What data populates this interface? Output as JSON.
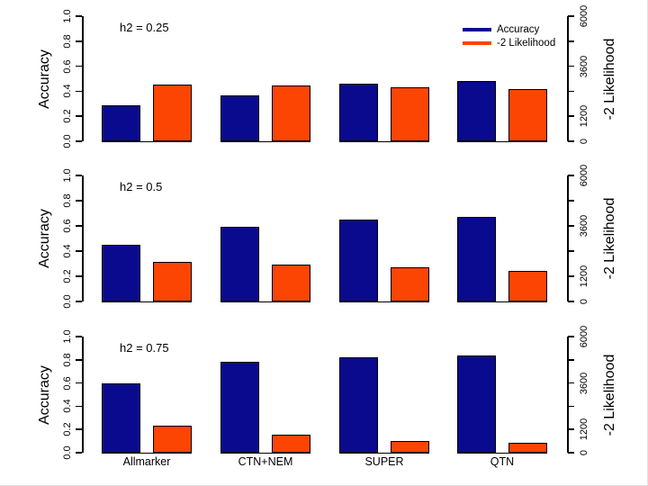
{
  "figure": {
    "background": "#ffffff"
  },
  "chart_data": {
    "type": "bar",
    "categories": [
      "Allmarker",
      "CTN+NEM",
      "SUPER",
      "QTN"
    ],
    "panels": [
      {
        "label": "h2 = 0.25",
        "series": [
          {
            "name": "Accuracy",
            "axis": "left",
            "values": [
              0.29,
              0.37,
              0.46,
              0.48
            ]
          },
          {
            "name": "-2 Likelihood",
            "axis": "right",
            "values": [
              2700,
              2660,
              2580,
              2510
            ]
          }
        ]
      },
      {
        "label": "h2 = 0.5",
        "series": [
          {
            "name": "Accuracy",
            "axis": "left",
            "values": [
              0.45,
              0.59,
              0.65,
              0.67
            ]
          },
          {
            "name": "-2 Likelihood",
            "axis": "right",
            "values": [
              1890,
              1750,
              1640,
              1470
            ]
          }
        ]
      },
      {
        "label": "h2 = 0.75",
        "series": [
          {
            "name": "Accuracy",
            "axis": "left",
            "values": [
              0.6,
              0.78,
              0.82,
              0.84
            ]
          },
          {
            "name": "-2 Likelihood",
            "axis": "right",
            "values": [
              1390,
              940,
              620,
              500
            ]
          }
        ]
      }
    ],
    "left_axis": {
      "label": "Accuracy",
      "min": 0,
      "max": 1,
      "ticks": [
        0.0,
        0.2,
        0.4,
        0.6,
        0.8,
        1.0
      ],
      "tick_labels": [
        "0.0",
        "0.2",
        "0.4",
        "0.6",
        "0.8",
        "1.0"
      ]
    },
    "right_axis": {
      "label": "-2 Likelihood",
      "min": 0,
      "max": 6000,
      "ticks": [
        0,
        1200,
        2400,
        3600,
        4800,
        6000
      ],
      "labeled_ticks": [
        0,
        1200,
        3600,
        6000
      ]
    },
    "legend": {
      "position": "top-right",
      "entries": [
        {
          "label": "Accuracy",
          "color": "#0a0a8f"
        },
        {
          "label": "-2 Likelihood",
          "color": "#fc4503"
        }
      ]
    },
    "colors": {
      "accuracy_bar": "#0a0a8f",
      "likelihood_bar": "#fc4503",
      "axis": "#000000"
    },
    "grid": false
  }
}
